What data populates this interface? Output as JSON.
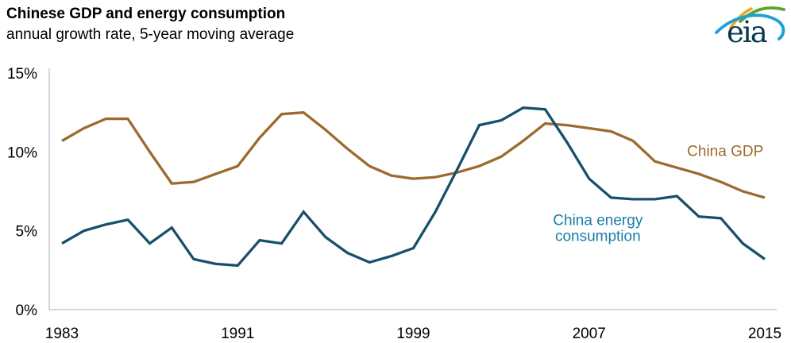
{
  "header": {
    "title": "Chinese GDP and energy consumption",
    "subtitle": "annual growth rate, 5-year moving average"
  },
  "logo": {
    "text": "eia",
    "navy": "#06384f",
    "green": "#5ea32d",
    "yellow": "#f0a81d",
    "blue": "#1e9fd9"
  },
  "chart_data": {
    "type": "line",
    "title": "Chinese GDP and energy consumption",
    "subtitle": "annual growth rate, 5-year moving average",
    "xlabel": "",
    "ylabel": "",
    "unit": "%",
    "xlim": [
      1983,
      2015
    ],
    "ylim": [
      0,
      15
    ],
    "grid": false,
    "legend": "inline-labels",
    "axis_color": "#c8c8c8",
    "tick_text_color": "#000000",
    "x": [
      1983,
      1984,
      1985,
      1986,
      1987,
      1988,
      1989,
      1990,
      1991,
      1992,
      1993,
      1994,
      1995,
      1996,
      1997,
      1998,
      1999,
      2000,
      2001,
      2002,
      2003,
      2004,
      2005,
      2006,
      2007,
      2008,
      2009,
      2010,
      2011,
      2012,
      2013,
      2014,
      2015
    ],
    "series": [
      {
        "id": "gdp-line",
        "name": "China GDP",
        "color": "#9c6a2f",
        "values": [
          10.7,
          11.5,
          12.1,
          12.1,
          10.0,
          8.0,
          8.1,
          8.6,
          9.1,
          10.9,
          12.4,
          12.5,
          11.4,
          10.2,
          9.1,
          8.5,
          8.3,
          8.4,
          8.7,
          9.1,
          9.7,
          10.7,
          11.8,
          11.7,
          11.5,
          11.3,
          10.7,
          9.4,
          9.0,
          8.6,
          8.1,
          7.5,
          7.1
        ]
      },
      {
        "id": "energy-line",
        "name": "China energy consumption",
        "color": "#17506b",
        "values": [
          4.2,
          5.0,
          5.4,
          5.7,
          4.2,
          5.2,
          3.2,
          2.9,
          2.8,
          4.4,
          4.2,
          6.2,
          4.6,
          3.6,
          3.0,
          3.4,
          3.9,
          6.2,
          8.9,
          11.7,
          12.0,
          12.8,
          12.7,
          10.6,
          8.3,
          7.1,
          7.0,
          7.0,
          7.2,
          5.9,
          5.8,
          4.2,
          3.2
        ]
      }
    ],
    "labels": [
      {
        "id": "gdp-line-label",
        "lines": [
          "China GDP"
        ],
        "color": "#9c6a2f",
        "anchor_year": 2013.2,
        "anchor_value": 10.1
      },
      {
        "id": "energy-line-label",
        "lines": [
          "China energy",
          "consumption"
        ],
        "color": "#1b7cab",
        "anchor_year": 2007.4,
        "anchor_value": 5.2
      }
    ],
    "y_ticks": [
      {
        "value": 0,
        "label": "0%"
      },
      {
        "value": 5,
        "label": "5%"
      },
      {
        "value": 10,
        "label": "10%"
      },
      {
        "value": 15,
        "label": "15%"
      }
    ],
    "x_ticks": [
      {
        "value": 1983,
        "label": "1983"
      },
      {
        "value": 1991,
        "label": "1991"
      },
      {
        "value": 1999,
        "label": "1999"
      },
      {
        "value": 2007,
        "label": "2007"
      },
      {
        "value": 2015,
        "label": "2015"
      }
    ]
  }
}
